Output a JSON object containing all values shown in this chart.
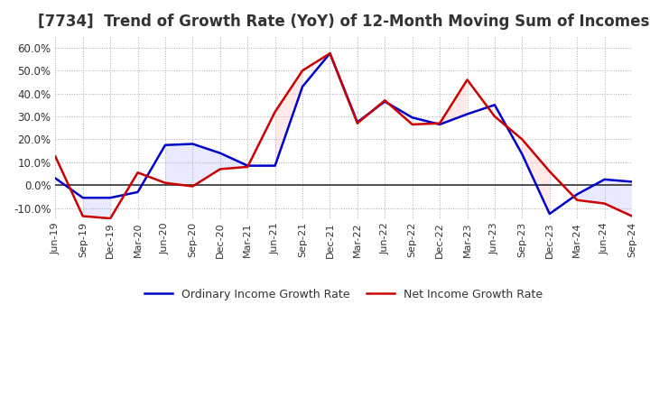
{
  "title": "[7734]  Trend of Growth Rate (YoY) of 12-Month Moving Sum of Incomes",
  "title_fontsize": 12,
  "ylim": [
    -0.15,
    0.65
  ],
  "yticks": [
    -0.1,
    0.0,
    0.1,
    0.2,
    0.3,
    0.4,
    0.5,
    0.6
  ],
  "background_color": "#ffffff",
  "grid_color": "#aaaaaa",
  "dates": [
    "Jun-19",
    "Sep-19",
    "Dec-19",
    "Mar-20",
    "Jun-20",
    "Sep-20",
    "Dec-20",
    "Mar-21",
    "Jun-21",
    "Sep-21",
    "Dec-21",
    "Mar-22",
    "Jun-22",
    "Sep-22",
    "Dec-22",
    "Mar-23",
    "Jun-23",
    "Sep-23",
    "Dec-23",
    "Mar-24",
    "Jun-24",
    "Sep-24"
  ],
  "ordinary_income": [
    0.03,
    -0.055,
    -0.055,
    -0.03,
    0.175,
    0.18,
    0.14,
    0.085,
    0.085,
    0.43,
    0.575,
    0.275,
    0.365,
    0.295,
    0.265,
    0.31,
    0.35,
    0.135,
    -0.125,
    -0.04,
    0.025,
    0.015
  ],
  "net_income": [
    0.125,
    -0.135,
    -0.145,
    0.055,
    0.01,
    -0.005,
    0.07,
    0.08,
    0.32,
    0.5,
    0.575,
    0.27,
    0.37,
    0.265,
    0.27,
    0.46,
    0.3,
    0.2,
    0.06,
    -0.065,
    -0.08,
    -0.135
  ],
  "ordinary_color": "#0000cc",
  "net_color": "#cc0000",
  "line_width": 1.8,
  "legend_labels": [
    "Ordinary Income Growth Rate",
    "Net Income Growth Rate"
  ],
  "fill_ordinary_color": "#aaaaff",
  "fill_net_color": "#ffaaaa",
  "fill_alpha": 0.25
}
